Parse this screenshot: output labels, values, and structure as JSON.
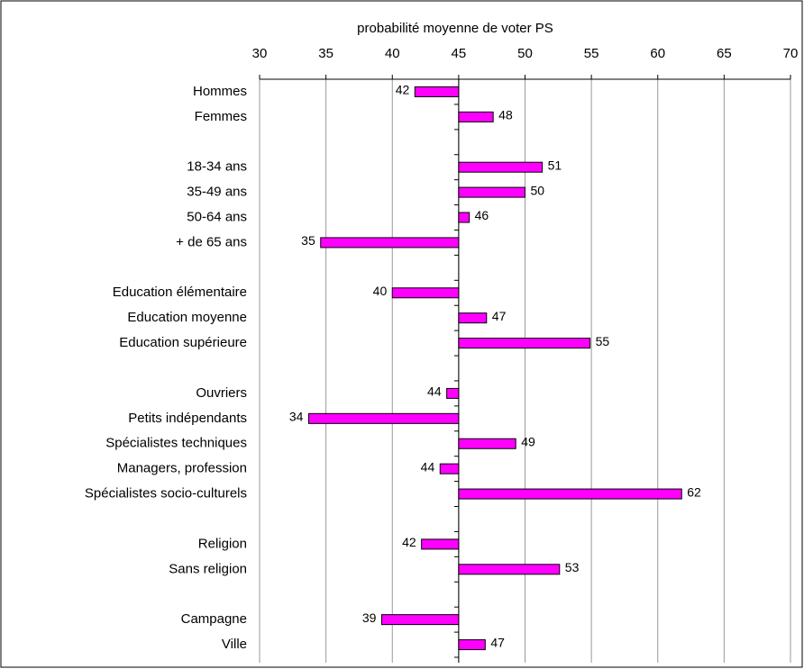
{
  "chart_data": {
    "type": "bar",
    "orientation": "horizontal",
    "xlabel": "probabilité moyenne de voter PS",
    "categories": [
      "Hommes",
      "Femmes",
      null,
      "18-34 ans",
      "35-49 ans",
      "50-64 ans",
      "+ de 65 ans",
      null,
      "Education élémentaire",
      "Education moyenne",
      "Education supérieure",
      null,
      "Ouvriers",
      "Petits indépendants",
      "Spécialistes techniques",
      "Managers, profession",
      "Spécialistes socio-culturels",
      null,
      "Religion",
      "Sans religion",
      null,
      "Campagne",
      "Ville"
    ],
    "values": [
      41.7,
      47.6,
      null,
      51.3,
      50,
      45.8,
      34.6,
      null,
      40,
      47.1,
      54.9,
      null,
      44.1,
      33.7,
      49.3,
      43.6,
      61.8,
      null,
      42.2,
      52.6,
      null,
      39.2,
      47
    ],
    "value_labels": [
      "42",
      "48",
      null,
      "51",
      "50",
      "46",
      "35",
      null,
      "40",
      "47",
      "55",
      null,
      "44",
      "34",
      "49",
      "44",
      "62",
      null,
      "42",
      "53",
      null,
      "39",
      "47"
    ],
    "base": 45,
    "color": "#ff00ff",
    "xlim": [
      30,
      70
    ],
    "xticks": [
      30,
      35,
      40,
      45,
      50,
      55,
      60,
      65,
      70
    ],
    "grid": true
  }
}
